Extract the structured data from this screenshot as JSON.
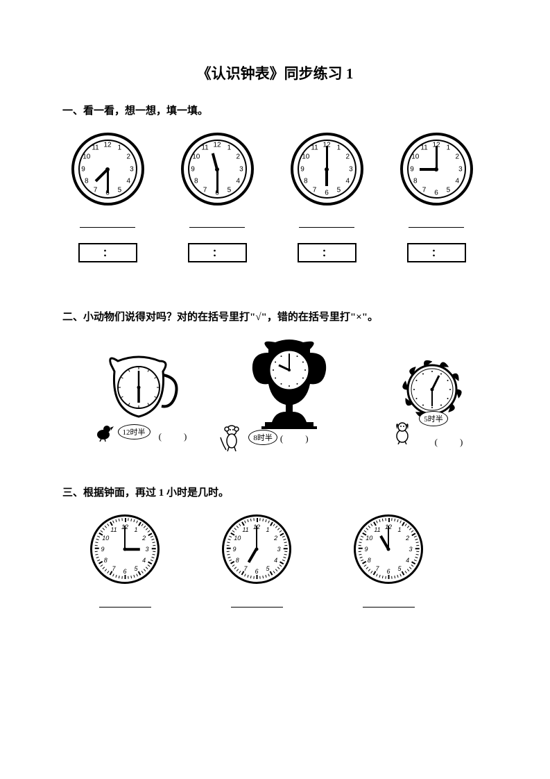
{
  "title": "《认识钟表》同步练习 1",
  "section1": {
    "header": "一、看一看，想一想，填一填。",
    "clocks": [
      {
        "hour_angle": 225,
        "minute_angle": 180,
        "hour_len": 24,
        "min_len": 34
      },
      {
        "hour_angle": 345,
        "minute_angle": 180,
        "hour_len": 24,
        "min_len": 34
      },
      {
        "hour_angle": 180,
        "minute_angle": 0,
        "hour_len": 24,
        "min_len": 34
      },
      {
        "hour_angle": 270,
        "minute_angle": 0,
        "hour_len": 24,
        "min_len": 34
      }
    ],
    "box_label": "："
  },
  "section2": {
    "header": "二、小动物们说得对吗？对的在括号里打\"√\"，错的在括号里打\"×\"。",
    "items": [
      {
        "label": "12时半",
        "paren": "(　　)"
      },
      {
        "label": "8时半",
        "paren": "(　　)"
      },
      {
        "label": "5时半",
        "paren": "(　　)"
      }
    ]
  },
  "section3": {
    "header": "三、根据钟面，再过 1 小时是几时。",
    "clocks": [
      {
        "hour_angle": 90,
        "minute_angle": 0,
        "hour_len": 22,
        "min_len": 34
      },
      {
        "hour_angle": 210,
        "minute_angle": 0,
        "hour_len": 22,
        "min_len": 34
      },
      {
        "hour_angle": 330,
        "minute_angle": 0,
        "hour_len": 22,
        "min_len": 34
      }
    ]
  },
  "clock_numbers": [
    "12",
    "1",
    "2",
    "3",
    "4",
    "5",
    "6",
    "7",
    "8",
    "9",
    "10",
    "11"
  ],
  "colors": {
    "fg": "#000000",
    "bg": "#ffffff"
  }
}
